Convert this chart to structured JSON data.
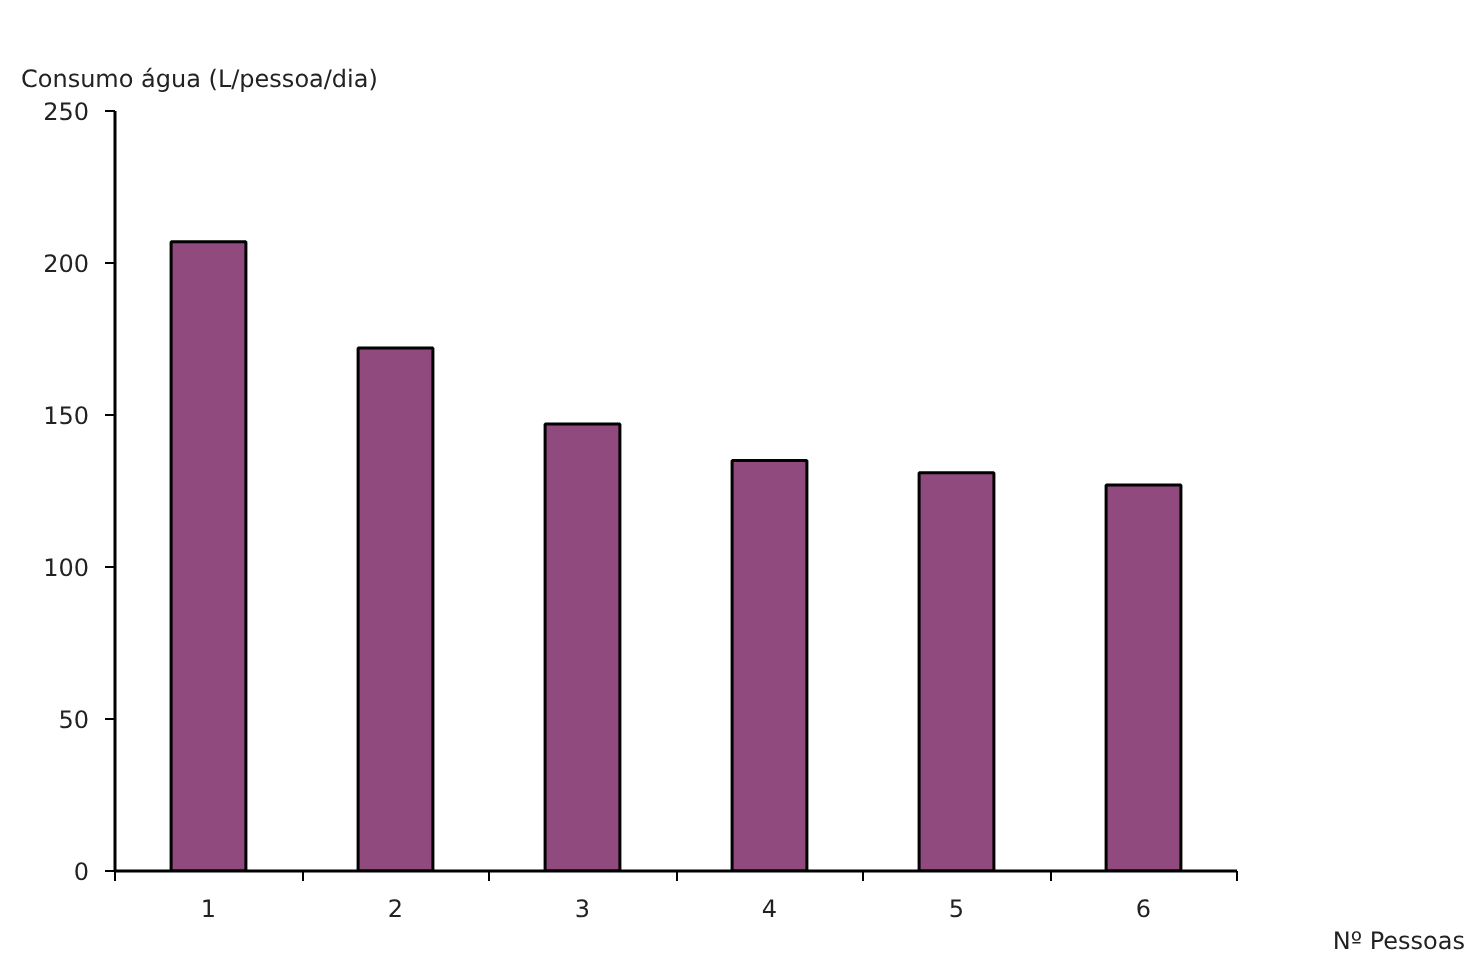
{
  "chart_data": {
    "type": "bar",
    "ylabel": "Consumo água (L/pessoa/dia)",
    "xlabel": "Nº Pessoas",
    "categories": [
      "1",
      "2",
      "3",
      "4",
      "5",
      "6"
    ],
    "values": [
      207,
      172,
      147,
      135,
      131,
      127
    ],
    "color": "#904a7e",
    "ylim": [
      0,
      250
    ],
    "yticks": [
      0,
      50,
      100,
      150,
      200,
      250
    ],
    "grid": false
  }
}
